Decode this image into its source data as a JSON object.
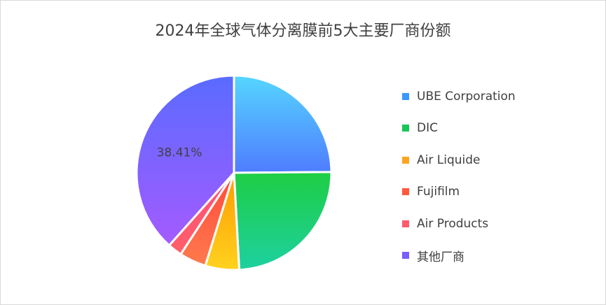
{
  "chart_data": {
    "type": "pie",
    "title": "2024年全球气体分离膜前5大主要厂商份额",
    "categories": [
      "UBE Corporation",
      "DIC",
      "Air Liquide",
      "Fujifilm",
      "Air Products",
      "其他厂商"
    ],
    "values": [
      24.87,
      24.27,
      5.63,
      4.44,
      2.38,
      38.41
    ],
    "data_labels": [
      {
        "category": "其他厂商",
        "text": "38.41%"
      }
    ],
    "legend_position": "right",
    "colors": [
      [
        "#55d6ff",
        "#4f7cff"
      ],
      [
        "#1fce44",
        "#1dd0a0"
      ],
      [
        "#ff9a00",
        "#ffd21f"
      ],
      [
        "#ff4a3c",
        "#ff7a4d"
      ],
      [
        "#ff4f7a",
        "#ff5f6a"
      ],
      [
        "#5a6bff",
        "#a45bff"
      ]
    ],
    "legend_colors": [
      "#3a98ff",
      "#17c656",
      "#ffa51f",
      "#ff5a3c",
      "#ff5a70",
      "#7a5cff"
    ]
  }
}
